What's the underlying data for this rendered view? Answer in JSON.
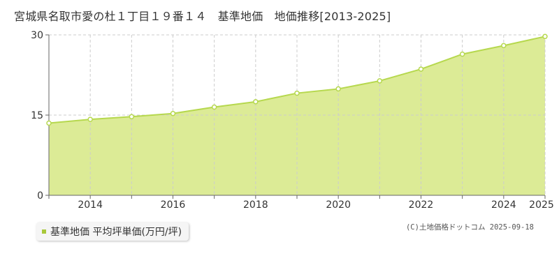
{
  "page": {
    "title": "宮城県名取市愛の杜１丁目１９番１４　基準地価　地価推移[2013-2025]",
    "credit": "(C)土地価格ドットコム 2025-09-18"
  },
  "legend": {
    "label": "基準地価 平均坪単価(万円/坪)"
  },
  "colors": {
    "fill": "#dceb96",
    "line": "#b6d84e",
    "point_fill": "#ffffff",
    "grid": "#cccccc",
    "axis": "#666666"
  },
  "chart_data": {
    "type": "area",
    "x": [
      2013,
      2014,
      2015,
      2016,
      2017,
      2018,
      2019,
      2020,
      2021,
      2022,
      2023,
      2024,
      2025
    ],
    "series": [
      {
        "name": "基準地価 平均坪単価(万円/坪)",
        "values": [
          13.5,
          14.2,
          14.7,
          15.3,
          16.5,
          17.5,
          19.1,
          19.9,
          21.4,
          23.6,
          26.4,
          28.0,
          29.7
        ]
      }
    ],
    "y_ticks": [
      0,
      15,
      30
    ],
    "x_tick_labels": [
      2014,
      2016,
      2018,
      2020,
      2022,
      2024,
      2025
    ],
    "xlim": [
      2013,
      2025
    ],
    "ylim": [
      0,
      30
    ],
    "grid": true
  }
}
